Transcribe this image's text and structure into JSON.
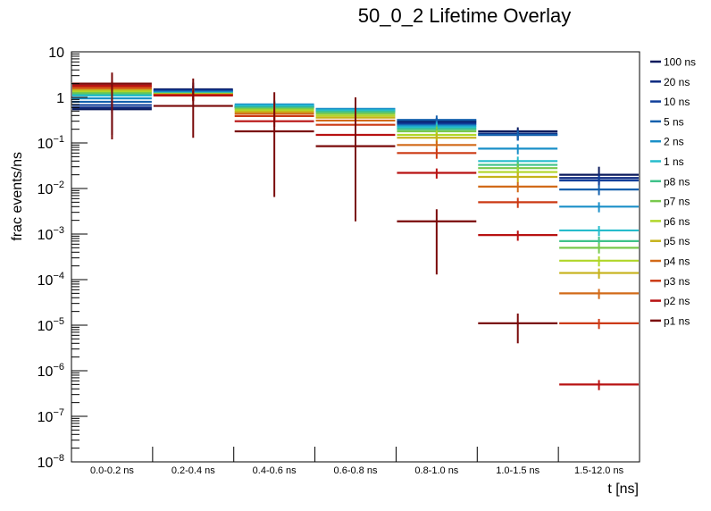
{
  "chart_data": {
    "type": "line",
    "subtype": "step-histogram-overlay",
    "title": "50_0_2 Lifetime Overlay",
    "xlabel": "t [ns]",
    "ylabel": "frac events/ns",
    "yscale": "log",
    "ylim": [
      1e-08,
      10
    ],
    "y_tick_labels": [
      "10",
      "1",
      "10^-1",
      "10^-2",
      "10^-3",
      "10^-4",
      "10^-5",
      "10^-6",
      "10^-7",
      "10^-8"
    ],
    "y_tick_values": [
      10,
      1,
      0.1,
      0.01,
      0.001,
      0.0001,
      1e-05,
      1e-06,
      1e-07,
      1e-08
    ],
    "categories": [
      "0.0-0.2 ns",
      "0.2-0.4 ns",
      "0.4-0.6 ns",
      "0.6-0.8 ns",
      "0.8-1.0 ns",
      "1.0-1.5 ns",
      "1.5-12.0 ns"
    ],
    "legend_position": "right",
    "series": [
      {
        "name": "100 ns",
        "color": "#0a1a5c",
        "values": [
          0.55,
          1.5,
          0.6,
          0.5,
          0.3,
          0.18,
          0.02
        ],
        "err_low": [
          0.15,
          1.0,
          0.55,
          0.45,
          0.25,
          0.14,
          0.012
        ],
        "err_high": [
          1.2,
          2.1,
          0.7,
          0.55,
          0.35,
          0.22,
          0.03
        ]
      },
      {
        "name": "20 ns",
        "color": "#0d2a80",
        "values": [
          0.6,
          1.45,
          0.62,
          0.5,
          0.28,
          0.16,
          0.017
        ],
        "err_low": null,
        "err_high": null
      },
      {
        "name": "10 ns",
        "color": "#103f9a",
        "values": [
          0.68,
          1.4,
          0.64,
          0.52,
          0.26,
          0.15,
          0.015
        ],
        "err_low": null,
        "err_high": null
      },
      {
        "name": "5 ns",
        "color": "#1460ad",
        "values": [
          0.8,
          1.35,
          0.66,
          0.55,
          0.32,
          0.15,
          0.0095
        ],
        "err_low": null,
        "err_high": null
      },
      {
        "name": "2 ns",
        "color": "#1a8fc8",
        "values": [
          0.95,
          1.3,
          0.7,
          0.56,
          0.24,
          0.075,
          0.004
        ],
        "err_low": null,
        "err_high": null
      },
      {
        "name": "1 ns",
        "color": "#26bccc",
        "values": [
          1.1,
          1.25,
          0.66,
          0.52,
          0.22,
          0.04,
          0.0012
        ],
        "err_low": null,
        "err_high": null
      },
      {
        "name": "p8 ns",
        "color": "#3fc28a",
        "values": [
          1.2,
          1.22,
          0.6,
          0.48,
          0.2,
          0.033,
          0.0007
        ],
        "err_low": null,
        "err_high": null
      },
      {
        "name": "p7 ns",
        "color": "#78c84c",
        "values": [
          1.28,
          1.2,
          0.56,
          0.44,
          0.18,
          0.028,
          0.0005
        ],
        "err_low": null,
        "err_high": null
      },
      {
        "name": "p6 ns",
        "color": "#b0d628",
        "values": [
          1.38,
          1.18,
          0.52,
          0.4,
          0.15,
          0.023,
          0.00026
        ],
        "err_low": null,
        "err_high": null
      },
      {
        "name": "p5 ns",
        "color": "#c6b21a",
        "values": [
          1.48,
          1.16,
          0.48,
          0.36,
          0.13,
          0.018,
          0.00014
        ],
        "err_low": null,
        "err_high": null
      },
      {
        "name": "p4 ns",
        "color": "#d26a18",
        "values": [
          1.58,
          1.14,
          0.44,
          0.31,
          0.09,
          0.011,
          5e-05
        ],
        "err_low": null,
        "err_high": null
      },
      {
        "name": "p3 ns",
        "color": "#cc3a14",
        "values": [
          1.7,
          1.12,
          0.39,
          0.25,
          0.06,
          0.005,
          1.1e-05
        ],
        "err_low": null,
        "err_high": null
      },
      {
        "name": "p2 ns",
        "color": "#b81212",
        "values": [
          1.82,
          1.1,
          0.3,
          0.15,
          0.022,
          0.00095,
          5e-07
        ],
        "err_low": null,
        "err_high": null
      },
      {
        "name": "p1 ns",
        "color": "#7a0a0a",
        "values": [
          2.0,
          0.65,
          0.18,
          0.085,
          0.0019,
          1.1e-05,
          null
        ],
        "err_low": [
          0.12,
          0.13,
          0.0065,
          0.0019,
          0.00013,
          4e-06,
          null
        ],
        "err_high": [
          3.5,
          2.6,
          1.3,
          1.0,
          0.0035,
          1.8e-05,
          null
        ]
      }
    ]
  }
}
